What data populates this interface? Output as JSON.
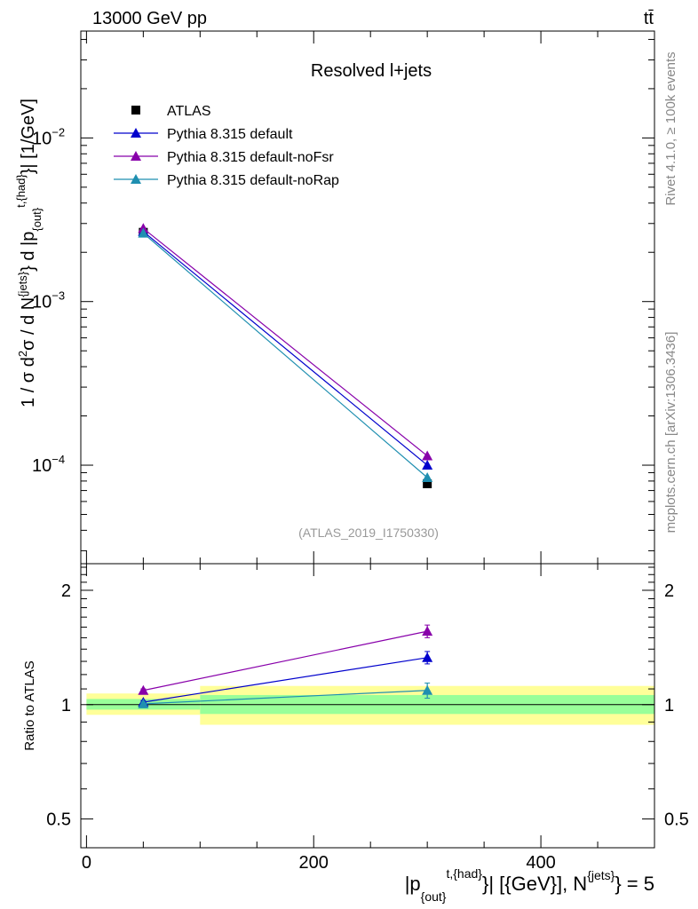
{
  "header": {
    "energy_label": "13000 GeV pp",
    "process_label": "tt̄"
  },
  "side_text": {
    "rivet": "Rivet 4.1.0, ≥ 100k events",
    "mcplots": "mcplots.cern.ch [arXiv:1306.3436]"
  },
  "colors": {
    "atlas": "#000000",
    "default": "#0000cc",
    "noFsr": "#8800aa",
    "noRap": "#1f8fb0",
    "band_yellow": "#ffff99",
    "band_green": "#99ff99"
  },
  "chart_data": [
    {
      "type": "scatter",
      "panel": "main",
      "title": "Resolved l+jets",
      "analysis_id": "(ATLAS_2019_I1750330)",
      "ylabel": "1 / σ d²σ / d N^{jets} d |p_{out}^{t,{had}}| [1/GeV]",
      "yscale": "log",
      "ylim": [
        2.5e-05,
        0.045
      ],
      "xlim": [
        -5,
        500
      ],
      "y_ticks": [
        {
          "value": 0.0001,
          "label": "10",
          "exp": "−4"
        },
        {
          "value": 0.001,
          "label": "10",
          "exp": "−3"
        },
        {
          "value": 0.01,
          "label": "10",
          "exp": "−2"
        }
      ],
      "legend_position": "top-left",
      "series": [
        {
          "name": "ATLAS",
          "marker": "square",
          "color": "#000000",
          "line": false,
          "x": [
            50,
            300
          ],
          "y": [
            0.00265,
            7.7e-05
          ]
        },
        {
          "name": "Pythia 8.315 default",
          "marker": "triangle",
          "color": "#0000cc",
          "line": true,
          "x": [
            50,
            300
          ],
          "y": [
            0.00268,
            0.0001
          ]
        },
        {
          "name": "Pythia 8.315 default-noFsr",
          "marker": "triangle",
          "color": "#8800aa",
          "line": true,
          "x": [
            50,
            300
          ],
          "y": [
            0.0028,
            0.000114
          ]
        },
        {
          "name": "Pythia 8.315 default-noRap",
          "marker": "triangle",
          "color": "#1f8fb0",
          "line": true,
          "x": [
            50,
            300
          ],
          "y": [
            0.00262,
            8.4e-05
          ]
        }
      ]
    },
    {
      "type": "line",
      "panel": "ratio",
      "ylabel": "Ratio to ATLAS",
      "xlabel": "|p_{out}^{t,{had}}| [{GeV}], N^{jets} = 5",
      "yscale": "log",
      "ylim": [
        0.42,
        2.35
      ],
      "xlim": [
        -5,
        500
      ],
      "x_ticks": [
        0,
        200,
        400
      ],
      "y_ticks": [
        {
          "value": 0.5,
          "label": "0.5"
        },
        {
          "value": 1,
          "label": "1"
        },
        {
          "value": 2,
          "label": "2"
        }
      ],
      "bands": [
        {
          "x_from": 0,
          "x_to": 100,
          "yellow": [
            0.94,
            1.07
          ],
          "green": [
            0.97,
            1.035
          ]
        },
        {
          "x_from": 100,
          "x_to": 500,
          "yellow": [
            0.885,
            1.12
          ],
          "green": [
            0.945,
            1.06
          ]
        }
      ],
      "series": [
        {
          "name": "Pythia 8.315 default",
          "color": "#0000cc",
          "x": [
            50,
            300
          ],
          "y": [
            1.015,
            1.33
          ],
          "err": [
            0.01,
            0.05
          ]
        },
        {
          "name": "Pythia 8.315 default-noFsr",
          "color": "#8800aa",
          "x": [
            50,
            300
          ],
          "y": [
            1.09,
            1.56
          ],
          "err": [
            0.01,
            0.06
          ]
        },
        {
          "name": "Pythia 8.315 default-noRap",
          "color": "#1f8fb0",
          "x": [
            50,
            300
          ],
          "y": [
            1.005,
            1.09
          ],
          "err": [
            0.01,
            0.05
          ]
        }
      ]
    }
  ]
}
